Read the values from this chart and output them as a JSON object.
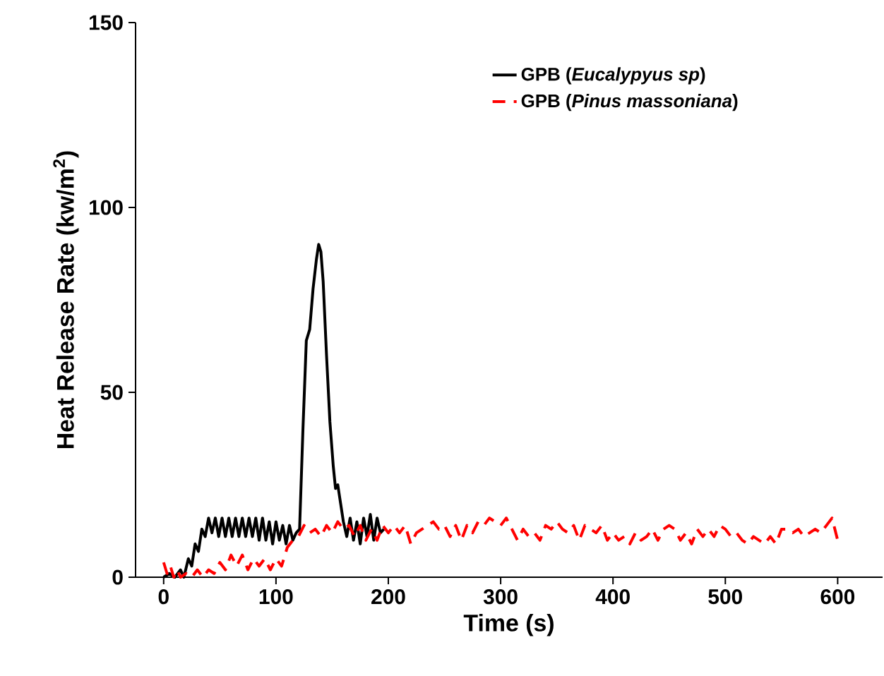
{
  "chart_data": {
    "type": "line",
    "xlabel": "Time (s)",
    "ylabel": "Heat Release Rate (kw/m$^{2}$)",
    "xlim": [
      -25,
      640
    ],
    "ylim": [
      0,
      150
    ],
    "xticks": [
      0,
      100,
      200,
      300,
      400,
      500,
      600
    ],
    "yticks": [
      0,
      50,
      100,
      150
    ],
    "legend": "top right",
    "series": [
      {
        "name": "GPB (*Eucalypyus sp*)",
        "color": "#000000",
        "line_style": "solid",
        "x": [
          0,
          5,
          10,
          15,
          18,
          22,
          25,
          28,
          31,
          34,
          37,
          40,
          43,
          46,
          49,
          52,
          55,
          58,
          61,
          64,
          67,
          70,
          73,
          76,
          79,
          82,
          85,
          88,
          91,
          94,
          97,
          100,
          103,
          106,
          109,
          112,
          115,
          118,
          121,
          124,
          127,
          130,
          133,
          136,
          138,
          140,
          142,
          145,
          148,
          151,
          153,
          155,
          157,
          160,
          163,
          166,
          169,
          172,
          175,
          178,
          181,
          184,
          187,
          190,
          193,
          196
        ],
        "values": [
          0,
          1,
          0,
          2,
          0,
          5,
          3,
          9,
          7,
          13,
          11,
          16,
          12,
          16,
          11,
          16,
          11,
          16,
          11,
          16,
          11,
          16,
          11,
          16,
          11,
          16,
          10,
          16,
          10,
          15,
          9,
          15,
          10,
          14,
          9,
          14,
          10,
          12,
          13,
          40,
          64,
          67,
          78,
          86,
          90,
          88,
          80,
          60,
          42,
          30,
          24,
          25,
          21,
          15,
          11,
          16,
          10,
          15,
          9,
          16,
          11,
          17,
          10,
          16,
          12,
          13
        ]
      },
      {
        "name": "GPB (*Pinus massoniana*)",
        "color": "#ff0000",
        "line_style": "dashed",
        "x": [
          0,
          3,
          6,
          9,
          12,
          15,
          20,
          25,
          30,
          35,
          40,
          45,
          50,
          55,
          60,
          65,
          70,
          75,
          80,
          85,
          90,
          95,
          100,
          105,
          110,
          115,
          120,
          125,
          130,
          135,
          140,
          145,
          150,
          155,
          160,
          165,
          170,
          175,
          180,
          185,
          190,
          195,
          200,
          205,
          210,
          215,
          220,
          225,
          230,
          235,
          240,
          245,
          250,
          255,
          260,
          265,
          270,
          275,
          280,
          285,
          290,
          295,
          300,
          305,
          310,
          315,
          320,
          325,
          330,
          335,
          340,
          345,
          350,
          355,
          360,
          365,
          370,
          375,
          380,
          385,
          390,
          395,
          400,
          405,
          410,
          415,
          420,
          425,
          430,
          435,
          440,
          445,
          450,
          455,
          460,
          465,
          470,
          475,
          480,
          485,
          490,
          495,
          500,
          505,
          510,
          515,
          520,
          525,
          530,
          535,
          540,
          545,
          550,
          555,
          560,
          565,
          570,
          575,
          580,
          585,
          590,
          595,
          600,
          603
        ],
        "values": [
          4,
          1,
          3,
          0,
          2,
          0,
          1,
          0,
          2,
          0,
          2,
          1,
          4,
          2,
          6,
          3,
          6,
          2,
          5,
          3,
          5,
          2,
          5,
          3,
          8,
          10,
          11,
          14,
          12,
          13,
          11,
          14,
          12,
          15,
          13,
          14,
          11,
          14,
          10,
          13,
          10,
          14,
          12,
          14,
          12,
          14,
          9,
          12,
          13,
          14,
          15,
          13,
          14,
          11,
          14,
          10,
          14,
          12,
          15,
          14,
          16,
          15,
          14,
          16,
          13,
          10,
          13,
          11,
          12,
          10,
          14,
          13,
          15,
          13,
          12,
          14,
          10,
          14,
          13,
          12,
          14,
          10,
          12,
          10,
          11,
          9,
          12,
          10,
          11,
          13,
          10,
          13,
          14,
          13,
          10,
          12,
          9,
          13,
          11,
          13,
          11,
          14,
          13,
          11,
          12,
          10,
          9,
          11,
          10,
          9,
          11,
          9,
          13,
          13,
          12,
          13,
          11,
          12,
          13,
          12,
          14,
          16,
          10,
          11
        ]
      }
    ]
  }
}
